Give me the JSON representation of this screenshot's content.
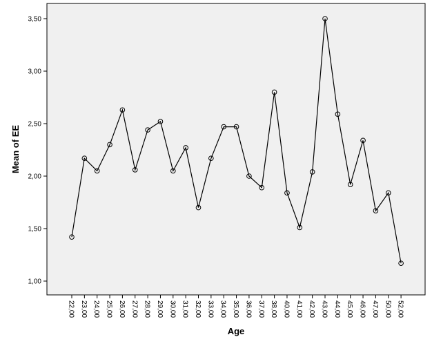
{
  "chart_data": {
    "type": "line",
    "title": "",
    "xlabel": "Age",
    "ylabel": "Mean of EE",
    "categories": [
      "22,00",
      "23,00",
      "24,00",
      "25,00",
      "26,00",
      "27,00",
      "28,00",
      "29,00",
      "30,00",
      "31,00",
      "32,00",
      "33,00",
      "34,00",
      "35,00",
      "36,00",
      "37,00",
      "38,00",
      "40,00",
      "41,00",
      "42,00",
      "43,00",
      "44,00",
      "45,00",
      "46,00",
      "47,00",
      "50,00",
      "52,00"
    ],
    "values": [
      1.42,
      2.17,
      2.05,
      2.3,
      2.63,
      2.06,
      2.44,
      2.52,
      2.05,
      2.27,
      1.7,
      2.17,
      2.47,
      2.47,
      2.0,
      1.89,
      2.8,
      1.84,
      1.51,
      2.04,
      3.5,
      2.59,
      1.92,
      2.34,
      1.67,
      1.84,
      1.17
    ],
    "ylim": [
      0.9,
      3.6
    ],
    "yticks": [
      1.0,
      1.5,
      2.0,
      2.5,
      3.0,
      3.5
    ],
    "ytick_labels": [
      "1,00",
      "1,50",
      "2,00",
      "2,50",
      "3,00",
      "3,50"
    ],
    "grid": false,
    "colors": {
      "plot_bg": "#f0f0f0",
      "line": "#000000",
      "marker": "#000000",
      "frame": "#000000"
    }
  }
}
